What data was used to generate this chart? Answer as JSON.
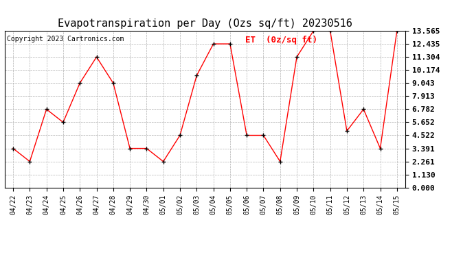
{
  "title": "Evapotranspiration per Day (Ozs sq/ft) 20230516",
  "copyright": "Copyright 2023 Cartronics.com",
  "legend_label": "ET  (0z/sq ft)",
  "x_labels": [
    "04/22",
    "04/23",
    "04/24",
    "04/25",
    "04/26",
    "04/27",
    "04/28",
    "04/29",
    "04/30",
    "05/01",
    "05/02",
    "05/03",
    "05/04",
    "05/05",
    "05/06",
    "05/07",
    "05/08",
    "05/09",
    "05/10",
    "05/11",
    "05/12",
    "05/13",
    "05/14",
    "05/15"
  ],
  "y_values": [
    3.391,
    2.261,
    6.782,
    5.652,
    9.043,
    11.304,
    9.043,
    3.391,
    3.391,
    2.261,
    4.522,
    9.695,
    12.435,
    12.435,
    4.522,
    4.522,
    2.261,
    11.304,
    13.565,
    13.565,
    4.9,
    6.782,
    3.391,
    13.565
  ],
  "y_ticks": [
    0.0,
    1.13,
    2.261,
    3.391,
    4.522,
    5.652,
    6.782,
    7.913,
    9.043,
    10.174,
    11.304,
    12.435,
    13.565
  ],
  "line_color": "red",
  "marker": "+",
  "marker_color": "black",
  "background_color": "white",
  "grid_color": "#b0b0b0",
  "title_fontsize": 11,
  "copyright_fontsize": 7,
  "legend_fontsize": 9,
  "xtick_fontsize": 7,
  "ytick_fontsize": 8
}
